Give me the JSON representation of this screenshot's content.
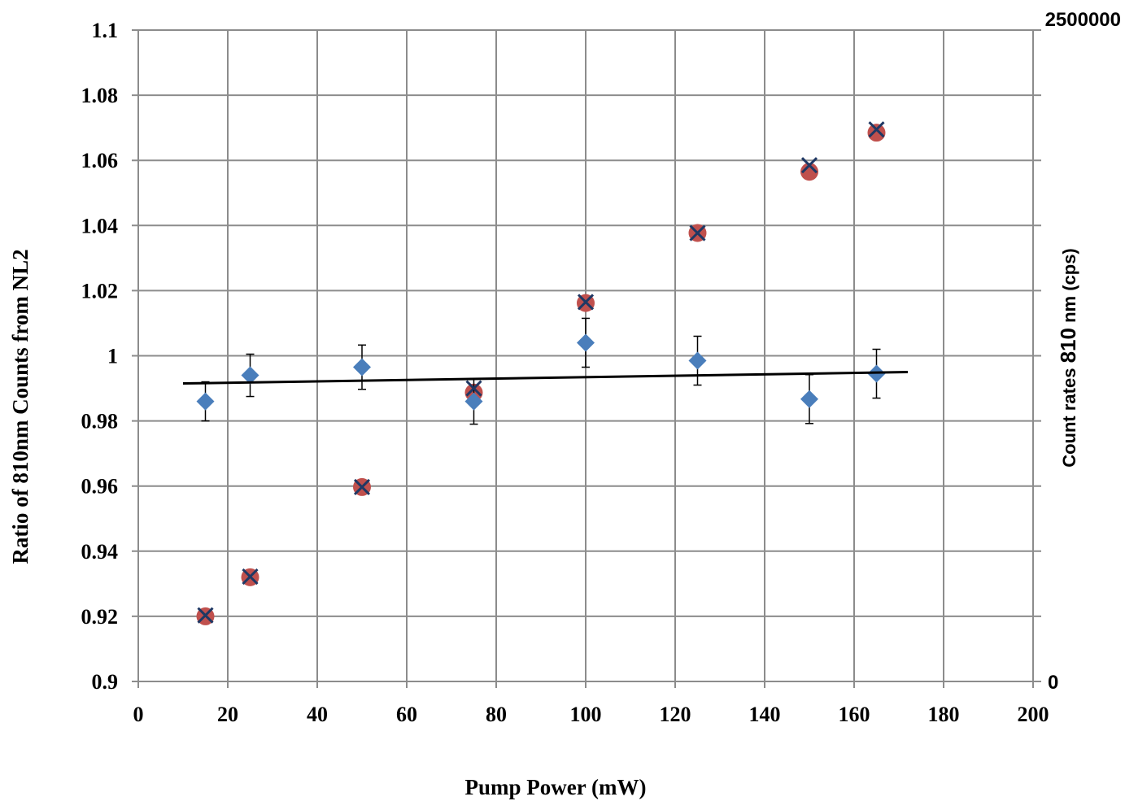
{
  "chart_data": {
    "type": "scatter",
    "xlabel": "Pump Power (mW)",
    "ylabel": "Ratio of 810nm Counts from NL2",
    "y2label": {
      "part1": "Count rates ",
      "part2": "810",
      "part3": " nm (cps)"
    },
    "xlim": [
      0,
      200
    ],
    "ylim": [
      0.9,
      1.1
    ],
    "y2lim": [
      0,
      2500000
    ],
    "x_ticks": [
      "0",
      "20",
      "40",
      "60",
      "80",
      "100",
      "120",
      "140",
      "160",
      "180",
      "200"
    ],
    "y_ticks": [
      "0.9",
      "0.92",
      "0.94",
      "0.96",
      "0.98",
      "1",
      "1.02",
      "1.04",
      "1.06",
      "1.08",
      "1.1"
    ],
    "y2_ticks": [
      "0",
      "2500000"
    ],
    "grid": true,
    "series": [
      {
        "marker": "diamond",
        "color": "#4a7ebb",
        "axis": "left",
        "x": [
          15,
          25,
          50,
          75,
          100,
          125,
          150,
          165
        ],
        "y": [
          0.986,
          0.994,
          0.9965,
          0.986,
          1.004,
          0.9985,
          0.9867,
          0.9945
        ],
        "err": [
          0.006,
          0.0065,
          0.0068,
          0.007,
          0.0075,
          0.0075,
          0.0075,
          0.0075
        ]
      },
      {
        "marker": "circle",
        "color": "#c0504d",
        "axis": "right",
        "x": [
          15,
          25,
          50,
          75,
          100,
          125,
          150,
          165
        ],
        "y": [
          0.92,
          0.932,
          0.9597,
          0.9887,
          1.0162,
          1.0377,
          1.0565,
          1.0685
        ]
      },
      {
        "marker": "x",
        "color": "#1f3864",
        "axis": "right",
        "x": [
          15,
          25,
          50,
          75,
          100,
          125,
          150,
          165
        ],
        "y": [
          0.9203,
          0.9322,
          0.9597,
          0.99,
          1.0165,
          1.0377,
          1.0585,
          1.0695
        ]
      }
    ],
    "trendline": {
      "color": "#000000",
      "x": [
        10,
        172
      ],
      "y": [
        0.9915,
        0.995
      ]
    }
  }
}
